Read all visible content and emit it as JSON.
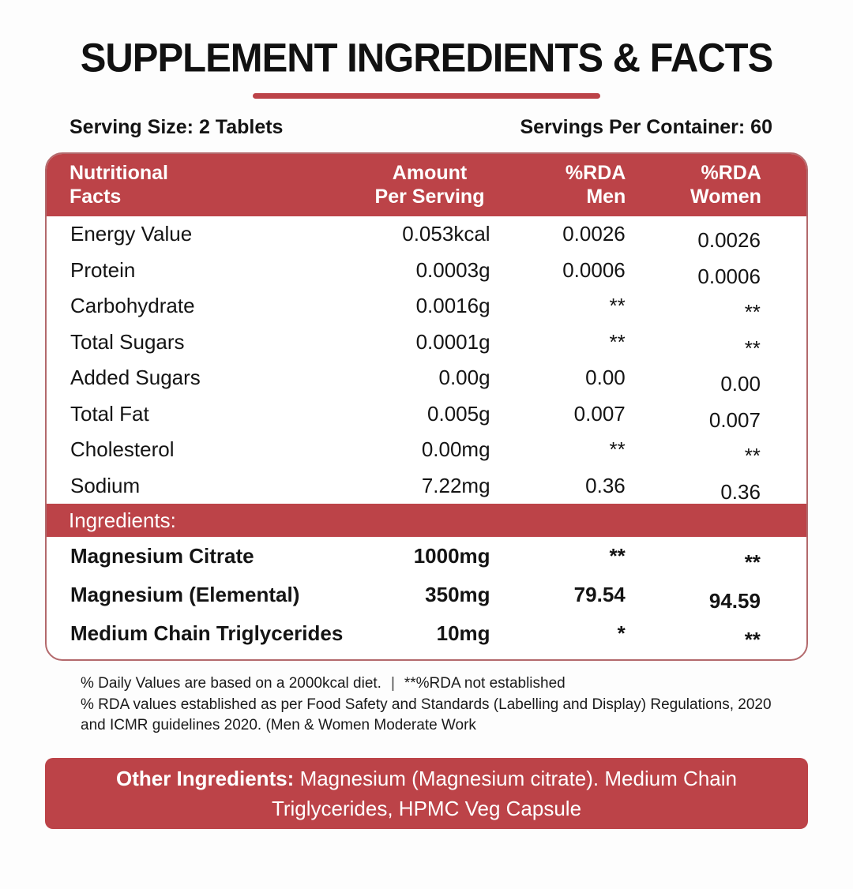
{
  "title": "SUPPLEMENT INGREDIENTS & FACTS",
  "serving": {
    "size": "Serving Size: 2 Tablets",
    "per_container": "Servings Per Container: 60"
  },
  "table": {
    "headers": [
      [
        "Nutritional",
        "Facts"
      ],
      [
        "Amount",
        "Per Serving"
      ],
      [
        "%RDA",
        "Men"
      ],
      [
        "%RDA",
        "Women"
      ]
    ],
    "rows": [
      {
        "name": "Energy Value",
        "amount": "0.053kcal",
        "men": "0.0026",
        "women": "0.0026"
      },
      {
        "name": "Protein",
        "amount": "0.0003g",
        "men": "0.0006",
        "women": "0.0006"
      },
      {
        "name": "Carbohydrate",
        "amount": "0.0016g",
        "men": "**",
        "women": "**"
      },
      {
        "name": "Total Sugars",
        "amount": "0.0001g",
        "men": "**",
        "women": "**"
      },
      {
        "name": "Added Sugars",
        "amount": "0.00g",
        "men": "0.00",
        "women": "0.00"
      },
      {
        "name": "Total Fat",
        "amount": "0.005g",
        "men": "0.007",
        "women": "0.007"
      },
      {
        "name": "Cholesterol",
        "amount": "0.00mg",
        "men": "**",
        "women": "**"
      },
      {
        "name": "Sodium",
        "amount": "7.22mg",
        "men": "0.36",
        "women": "0.36"
      }
    ],
    "section_label": "Ingredients:",
    "ingredient_rows": [
      {
        "name": "Magnesium Citrate",
        "amount": "1000mg",
        "men": "**",
        "women": "**"
      },
      {
        "name": "Magnesium (Elemental)",
        "amount": "350mg",
        "men": "79.54",
        "women": "94.59"
      },
      {
        "name": "Medium Chain Triglycerides",
        "amount": "10mg",
        "men": "*",
        "women": "**"
      }
    ]
  },
  "footnotes": {
    "line1a": "% Daily Values are based on a 2000kcal diet.",
    "line1sep": "|",
    "line1b": "**%RDA not established",
    "line2": "% RDA values established as per Food Safety and Standards (Labelling and Display) Regulations, 2020",
    "line3": "and ICMR guidelines 2020. (Men & Women Moderate Work"
  },
  "other_ingredients": {
    "lead": "Other Ingredients:",
    "rest": " Magnesium (Magnesium citrate). Medium Chain",
    "line2": "Triglycerides, HPMC Veg Capsule"
  },
  "colors": {
    "accent_red": "#BC4348",
    "table_border": "#B3696C",
    "text": "#141414",
    "header_text": "#FFFFFF"
  }
}
